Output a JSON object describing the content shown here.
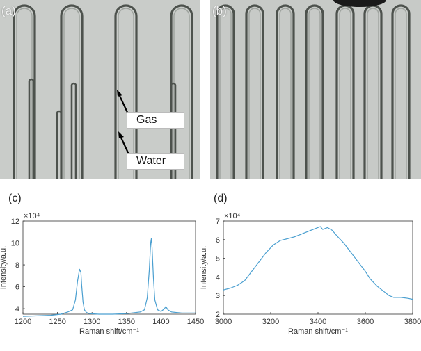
{
  "figure": {
    "panel_a": {
      "letter": "(a)",
      "labels": {
        "gas": "Gas",
        "water": "Water"
      }
    },
    "panel_b": {
      "letter": "(b)"
    },
    "panel_c": {
      "letter": "(c)"
    },
    "panel_d": {
      "letter": "(d)"
    }
  },
  "chart_data": [
    {
      "type": "line",
      "panel": "(c)",
      "title": "",
      "xlabel": "Raman shift/cm⁻¹",
      "ylabel": "Intensity/a.u.",
      "y_multiplier": "×10⁴",
      "xlim": [
        1200,
        1450
      ],
      "ylim": [
        3.5,
        12
      ],
      "x_ticks": [
        1200,
        1250,
        1300,
        1350,
        1400,
        1450
      ],
      "y_ticks": [
        4,
        6,
        8,
        10,
        12
      ],
      "color": "#4a9fd0",
      "grid": false,
      "series": [
        {
          "x": [
            1200,
            1220,
            1240,
            1255,
            1265,
            1272,
            1276,
            1279,
            1282,
            1284,
            1285,
            1287,
            1289,
            1292,
            1296,
            1310,
            1330,
            1350,
            1370,
            1376,
            1380,
            1383,
            1385,
            1386,
            1387,
            1389,
            1391,
            1395,
            1400,
            1405,
            1407,
            1410,
            1415,
            1430,
            1450
          ],
          "values": [
            3.3,
            3.35,
            3.4,
            3.5,
            3.7,
            3.9,
            4.8,
            6.5,
            7.6,
            7.3,
            6.2,
            4.6,
            3.9,
            3.65,
            3.55,
            3.5,
            3.5,
            3.55,
            3.7,
            3.9,
            5.0,
            7.5,
            10.0,
            10.4,
            9.6,
            6.8,
            4.8,
            3.9,
            3.75,
            4.0,
            4.2,
            3.9,
            3.7,
            3.6,
            3.6
          ]
        }
      ]
    },
    {
      "type": "line",
      "panel": "(d)",
      "title": "",
      "xlabel": "Raman shift/cm⁻¹",
      "ylabel": "Intensity/a.u.",
      "y_multiplier": "×10⁴",
      "xlim": [
        3000,
        3800
      ],
      "ylim": [
        2,
        7
      ],
      "x_ticks": [
        3000,
        3200,
        3400,
        3600,
        3800
      ],
      "y_ticks": [
        2,
        3,
        4,
        5,
        6,
        7
      ],
      "color": "#4a9fd0",
      "grid": false,
      "series": [
        {
          "x": [
            3000,
            3030,
            3060,
            3090,
            3120,
            3150,
            3180,
            3210,
            3240,
            3270,
            3300,
            3330,
            3360,
            3390,
            3410,
            3420,
            3440,
            3460,
            3480,
            3510,
            3540,
            3570,
            3600,
            3620,
            3650,
            3680,
            3700,
            3720,
            3750,
            3780,
            3800
          ],
          "values": [
            3.3,
            3.4,
            3.55,
            3.8,
            4.3,
            4.8,
            5.3,
            5.7,
            5.95,
            6.05,
            6.15,
            6.3,
            6.45,
            6.6,
            6.7,
            6.55,
            6.65,
            6.5,
            6.2,
            5.8,
            5.3,
            4.8,
            4.3,
            3.9,
            3.5,
            3.2,
            3.0,
            2.9,
            2.9,
            2.85,
            2.8
          ]
        }
      ]
    }
  ]
}
